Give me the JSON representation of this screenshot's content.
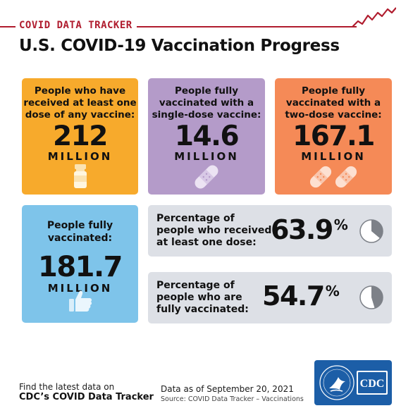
{
  "header": {
    "tracker_label": "COVID DATA TRACKER",
    "title": "U.S. COVID-19 Vaccination Progress"
  },
  "cards": {
    "at_least_one": {
      "label_lines": [
        "People who have",
        "received at least one",
        "dose of any vaccine:"
      ],
      "value": "212",
      "unit": "MILLION",
      "color": "#f7aa2c",
      "icon": "vaccine-vial-icon"
    },
    "single_dose": {
      "label_lines": [
        "People fully",
        "vaccinated with a",
        "single-dose vaccine:"
      ],
      "value": "14.6",
      "unit": "MILLION",
      "color": "#b49bc9",
      "icon": "bandage-icon"
    },
    "two_dose": {
      "label_lines": [
        "People fully",
        "vaccinated with a",
        "two-dose vaccine:"
      ],
      "value": "167.1",
      "unit": "MILLION",
      "color": "#f58a57",
      "icon": "two-bandages-icon"
    },
    "fully_vaccinated": {
      "label_lines": [
        "People fully",
        "vaccinated:"
      ],
      "value": "181.7",
      "unit": "MILLION",
      "color": "#7ec4ea",
      "icon": "thumbs-up-icon"
    }
  },
  "percentages": {
    "at_least_one": {
      "label_lines": [
        "Percentage of",
        "people who received",
        "at least one dose:"
      ],
      "value": "63.9",
      "symbol": "%",
      "fraction": 0.639,
      "icon": "pie-chart-icon"
    },
    "fully": {
      "label_lines": [
        "Percentage of",
        "people who are",
        "fully vaccinated:"
      ],
      "value": "54.7",
      "symbol": "%",
      "fraction": 0.547,
      "icon": "pie-chart-icon"
    }
  },
  "footer": {
    "find_line1": "Find the latest data on",
    "find_line2": "CDC’s COVID Data Tracker",
    "data_date": "Data as of September 20, 2021",
    "source": "Source: COVID Data Tracker – Vaccinations",
    "logo_text": "CDC",
    "logo_icon": "hhs-eagle-icon"
  },
  "colors": {
    "accent_red": "#b01c2e",
    "panel_gray": "#dde0e6",
    "cdc_blue": "#1c5ea7"
  }
}
